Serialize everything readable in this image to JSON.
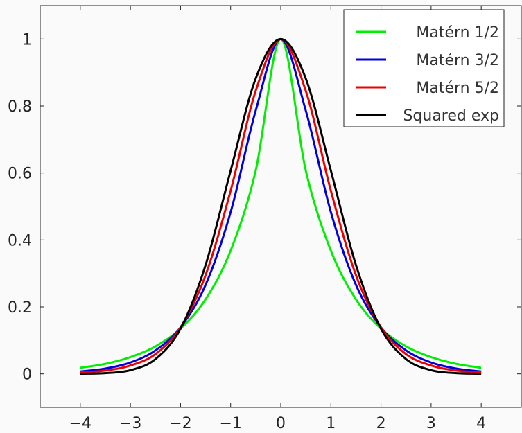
{
  "chart_data": {
    "type": "line",
    "title": "",
    "xlabel": "",
    "ylabel": "",
    "xlim": [
      -4.8,
      4.8
    ],
    "ylim": [
      -0.1,
      1.1
    ],
    "xticks": [
      -4,
      -3,
      -2,
      -1,
      0,
      1,
      2,
      3,
      4
    ],
    "xtick_labels": [
      "−4",
      "−3",
      "−2",
      "−1",
      "0",
      "1",
      "2",
      "3",
      "4"
    ],
    "yticks": [
      0,
      0.2,
      0.4,
      0.6,
      0.8,
      1
    ],
    "ytick_labels": [
      "0",
      "0.2",
      "0.4",
      "0.6",
      "0.8",
      "1"
    ],
    "grid": false,
    "legend_position": "top-right",
    "x": [
      -4,
      -3.5,
      -3,
      -2.5,
      -2,
      -1.5,
      -1,
      -0.5,
      0,
      0.5,
      1,
      1.5,
      2,
      2.5,
      3,
      3.5,
      4
    ],
    "series": [
      {
        "name": "Matérn 1/2",
        "color": "#00ee00",
        "values": [
          0.018,
          0.03,
          0.05,
          0.082,
          0.135,
          0.223,
          0.368,
          0.607,
          1.0,
          0.607,
          0.368,
          0.223,
          0.135,
          0.082,
          0.05,
          0.03,
          0.018
        ]
      },
      {
        "name": "Matérn 3/2",
        "color": "#0000dd",
        "values": [
          0.007,
          0.016,
          0.034,
          0.07,
          0.139,
          0.266,
          0.483,
          0.786,
          1.0,
          0.786,
          0.483,
          0.266,
          0.139,
          0.07,
          0.034,
          0.016,
          0.007
        ]
      },
      {
        "name": "Matérn 5/2",
        "color": "#ee0000",
        "values": [
          0.004,
          0.01,
          0.025,
          0.059,
          0.139,
          0.295,
          0.547,
          0.845,
          1.0,
          0.845,
          0.547,
          0.295,
          0.139,
          0.059,
          0.025,
          0.01,
          0.004
        ]
      },
      {
        "name": "Squared exp",
        "color": "#000000",
        "values": [
          0.0003,
          0.0022,
          0.011,
          0.044,
          0.135,
          0.325,
          0.607,
          0.882,
          1.0,
          0.882,
          0.607,
          0.325,
          0.135,
          0.044,
          0.011,
          0.0022,
          0.0003
        ]
      }
    ]
  }
}
